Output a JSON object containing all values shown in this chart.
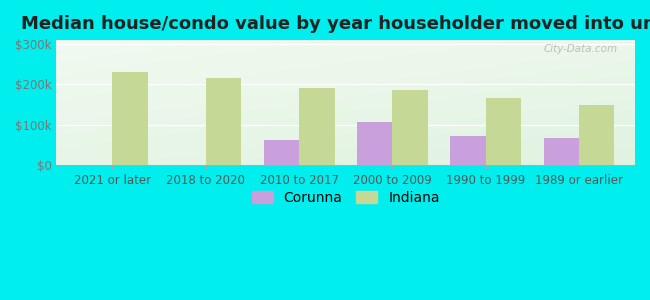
{
  "title": "Median house/condo value by year householder moved into unit",
  "categories": [
    "2021 or later",
    "2018 to 2020",
    "2010 to 2017",
    "2000 to 2009",
    "1990 to 1999",
    "1989 or earlier"
  ],
  "corunna_values": [
    null,
    null,
    62000,
    107000,
    73000,
    68000
  ],
  "indiana_values": [
    232000,
    215000,
    192000,
    185000,
    165000,
    148000
  ],
  "corunna_color": "#c9a0dc",
  "indiana_color": "#c5d896",
  "background_color": "#00eeee",
  "plot_bg": "#e8f5e4",
  "yticks": [
    0,
    100000,
    200000,
    300000
  ],
  "ylim": [
    0,
    310000
  ],
  "bar_width": 0.38,
  "title_fontsize": 13,
  "tick_fontsize": 8.5,
  "legend_fontsize": 10,
  "watermark": "City-Data.com"
}
